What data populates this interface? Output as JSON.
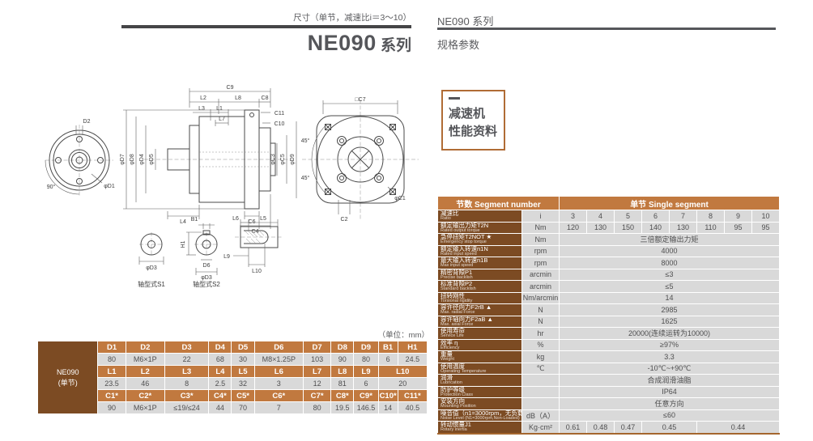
{
  "left": {
    "subtitle": "尺寸（单节，减速比i＝3～10）",
    "title": "NE090",
    "title_suffix": " 系列",
    "unit_note": "（单位：mm）",
    "drawing": {
      "labels": {
        "d2": "D2",
        "deg90": "90°",
        "d1": "φD1",
        "c9": "C9",
        "l2": "L2",
        "l8": "L8",
        "c8": "C8",
        "l3": "L3",
        "l1": "L1",
        "l7": "L7",
        "c11": "C11",
        "c10": "C10",
        "d7": "φD7",
        "d8": "φD8",
        "d4": "φD4",
        "d5": "φD5",
        "l4": "L4",
        "c6": "C6",
        "c4": "C4",
        "c3": "φC3",
        "c5": "φC5",
        "d9": "φD9",
        "c7": "□C7",
        "deg45": "45°",
        "c1": "φC1",
        "c2": "C2",
        "b1": "B1",
        "h1": "H1",
        "d6": "D6",
        "d3": "φD3",
        "l6": "L6",
        "l5": "L5",
        "l9": "L9",
        "l10": "L10",
        "s1": "轴型式S1",
        "s2": "轴型式S2"
      }
    },
    "dim_table": {
      "series_label": "NE090",
      "series_sub": "(单节)",
      "header_d": [
        "D1",
        "D2",
        "D3",
        "D4",
        "D5",
        "D6",
        "D7",
        "D8",
        "D9",
        "B1",
        "H1"
      ],
      "values_d": [
        "80",
        "M6×1P",
        "22",
        "68",
        "30",
        "M8×1.25P",
        "103",
        "90",
        "80",
        "6",
        "24.5"
      ],
      "header_l": [
        "L1",
        "L2",
        "L3",
        "L4",
        "L5",
        "L6",
        "L7",
        "L8",
        "L9",
        "L10"
      ],
      "values_l": [
        "23.5",
        "46",
        "8",
        "2.5",
        "32",
        "3",
        "12",
        "81",
        "6",
        "20"
      ],
      "header_c": [
        "C1*",
        "C2*",
        "C3*",
        "C4*",
        "C5*",
        "C6*",
        "C7*",
        "C8*",
        "C9*",
        "C10*",
        "C11*"
      ],
      "values_c": [
        "90",
        "M6×1P",
        "≤19/≤24",
        "44",
        "70",
        "7",
        "80",
        "19.5",
        "146.5",
        "14",
        "40.5"
      ]
    }
  },
  "right": {
    "series_title": "NE090 系列",
    "subtitle": "规格参数",
    "info_box": {
      "line1": "减速机",
      "line2": "性能资料"
    },
    "spec_table": {
      "header": {
        "left": "节数 Segment number",
        "right": "单节 Single segment"
      },
      "rows": [
        {
          "name": "减速比",
          "en": "Ratio",
          "unit": "i",
          "values": [
            "3",
            "4",
            "5",
            "6",
            "7",
            "8",
            "9",
            "10"
          ]
        },
        {
          "name": "额定输出力矩T2N",
          "en": "Rated output torque",
          "unit": "Nm",
          "values": [
            "120",
            "130",
            "150",
            "140",
            "130",
            "110",
            "95",
            "95"
          ]
        },
        {
          "name": "急停扭矩T2NOT ★",
          "en": "Emergency stop torque",
          "unit": "Nm",
          "span": "三倍额定输出力矩"
        },
        {
          "name": "额定输入转速n1N",
          "en": "Rated input speed",
          "unit": "rpm",
          "span": "4000"
        },
        {
          "name": "最大输入转速n1B",
          "en": "Max input speed",
          "unit": "rpm",
          "span": "8000"
        },
        {
          "name": "精密背隙P1",
          "en": "Precise backlish",
          "unit": "arcmin",
          "span": "≤3"
        },
        {
          "name": "标准背隙P2",
          "en": "Standard backlish",
          "unit": "arcmin",
          "span": "≤5"
        },
        {
          "name": "扭转刚性",
          "en": "Torsional rigidity",
          "unit": "Nm/arcmin",
          "span": "14"
        },
        {
          "name": "容许径向力F2rB ▲",
          "en": "Max. radial Force",
          "unit": "N",
          "span": "2985"
        },
        {
          "name": "容许轴向力F2aB ▲",
          "en": "Max. axial Force",
          "unit": "N",
          "span": "1625"
        },
        {
          "name": "使用寿命",
          "en": "Service Life",
          "unit": "hr",
          "span": "20000(连续运转为10000)"
        },
        {
          "name": "效率 η",
          "en": "Efficiency",
          "unit": "%",
          "span": "≥97%"
        },
        {
          "name": "重量",
          "en": "Weight",
          "unit": "kg",
          "span": "3.3"
        },
        {
          "name": "使用温度",
          "en": "Operating Temperature",
          "unit": "℃",
          "span": "-10℃~+90℃"
        },
        {
          "name": "润滑",
          "en": "Lubrication",
          "unit": "",
          "span": "合成润滑油脂"
        },
        {
          "name": "防护等级",
          "en": "Protection Class",
          "unit": "",
          "span": "IP64"
        },
        {
          "name": "安装方向",
          "en": "Mounting Position",
          "unit": "",
          "span": "任意方向"
        },
        {
          "name": "噪音值（n1=3000rpm，无负载）",
          "en": "Noise Level (N1=3000rpm,Non-Loaded)",
          "unit": "dB（A）",
          "span": "≤60"
        },
        {
          "name": "转动惯量J1",
          "en": "Rotary inertia",
          "unit": "Kg·cm²",
          "cells": [
            {
              "v": "0.61",
              "c": 1
            },
            {
              "v": "0.48",
              "c": 1
            },
            {
              "v": "0.47",
              "c": 1
            },
            {
              "v": "0.45",
              "c": 2
            },
            {
              "v": "0.44",
              "c": 3
            }
          ]
        }
      ]
    }
  }
}
